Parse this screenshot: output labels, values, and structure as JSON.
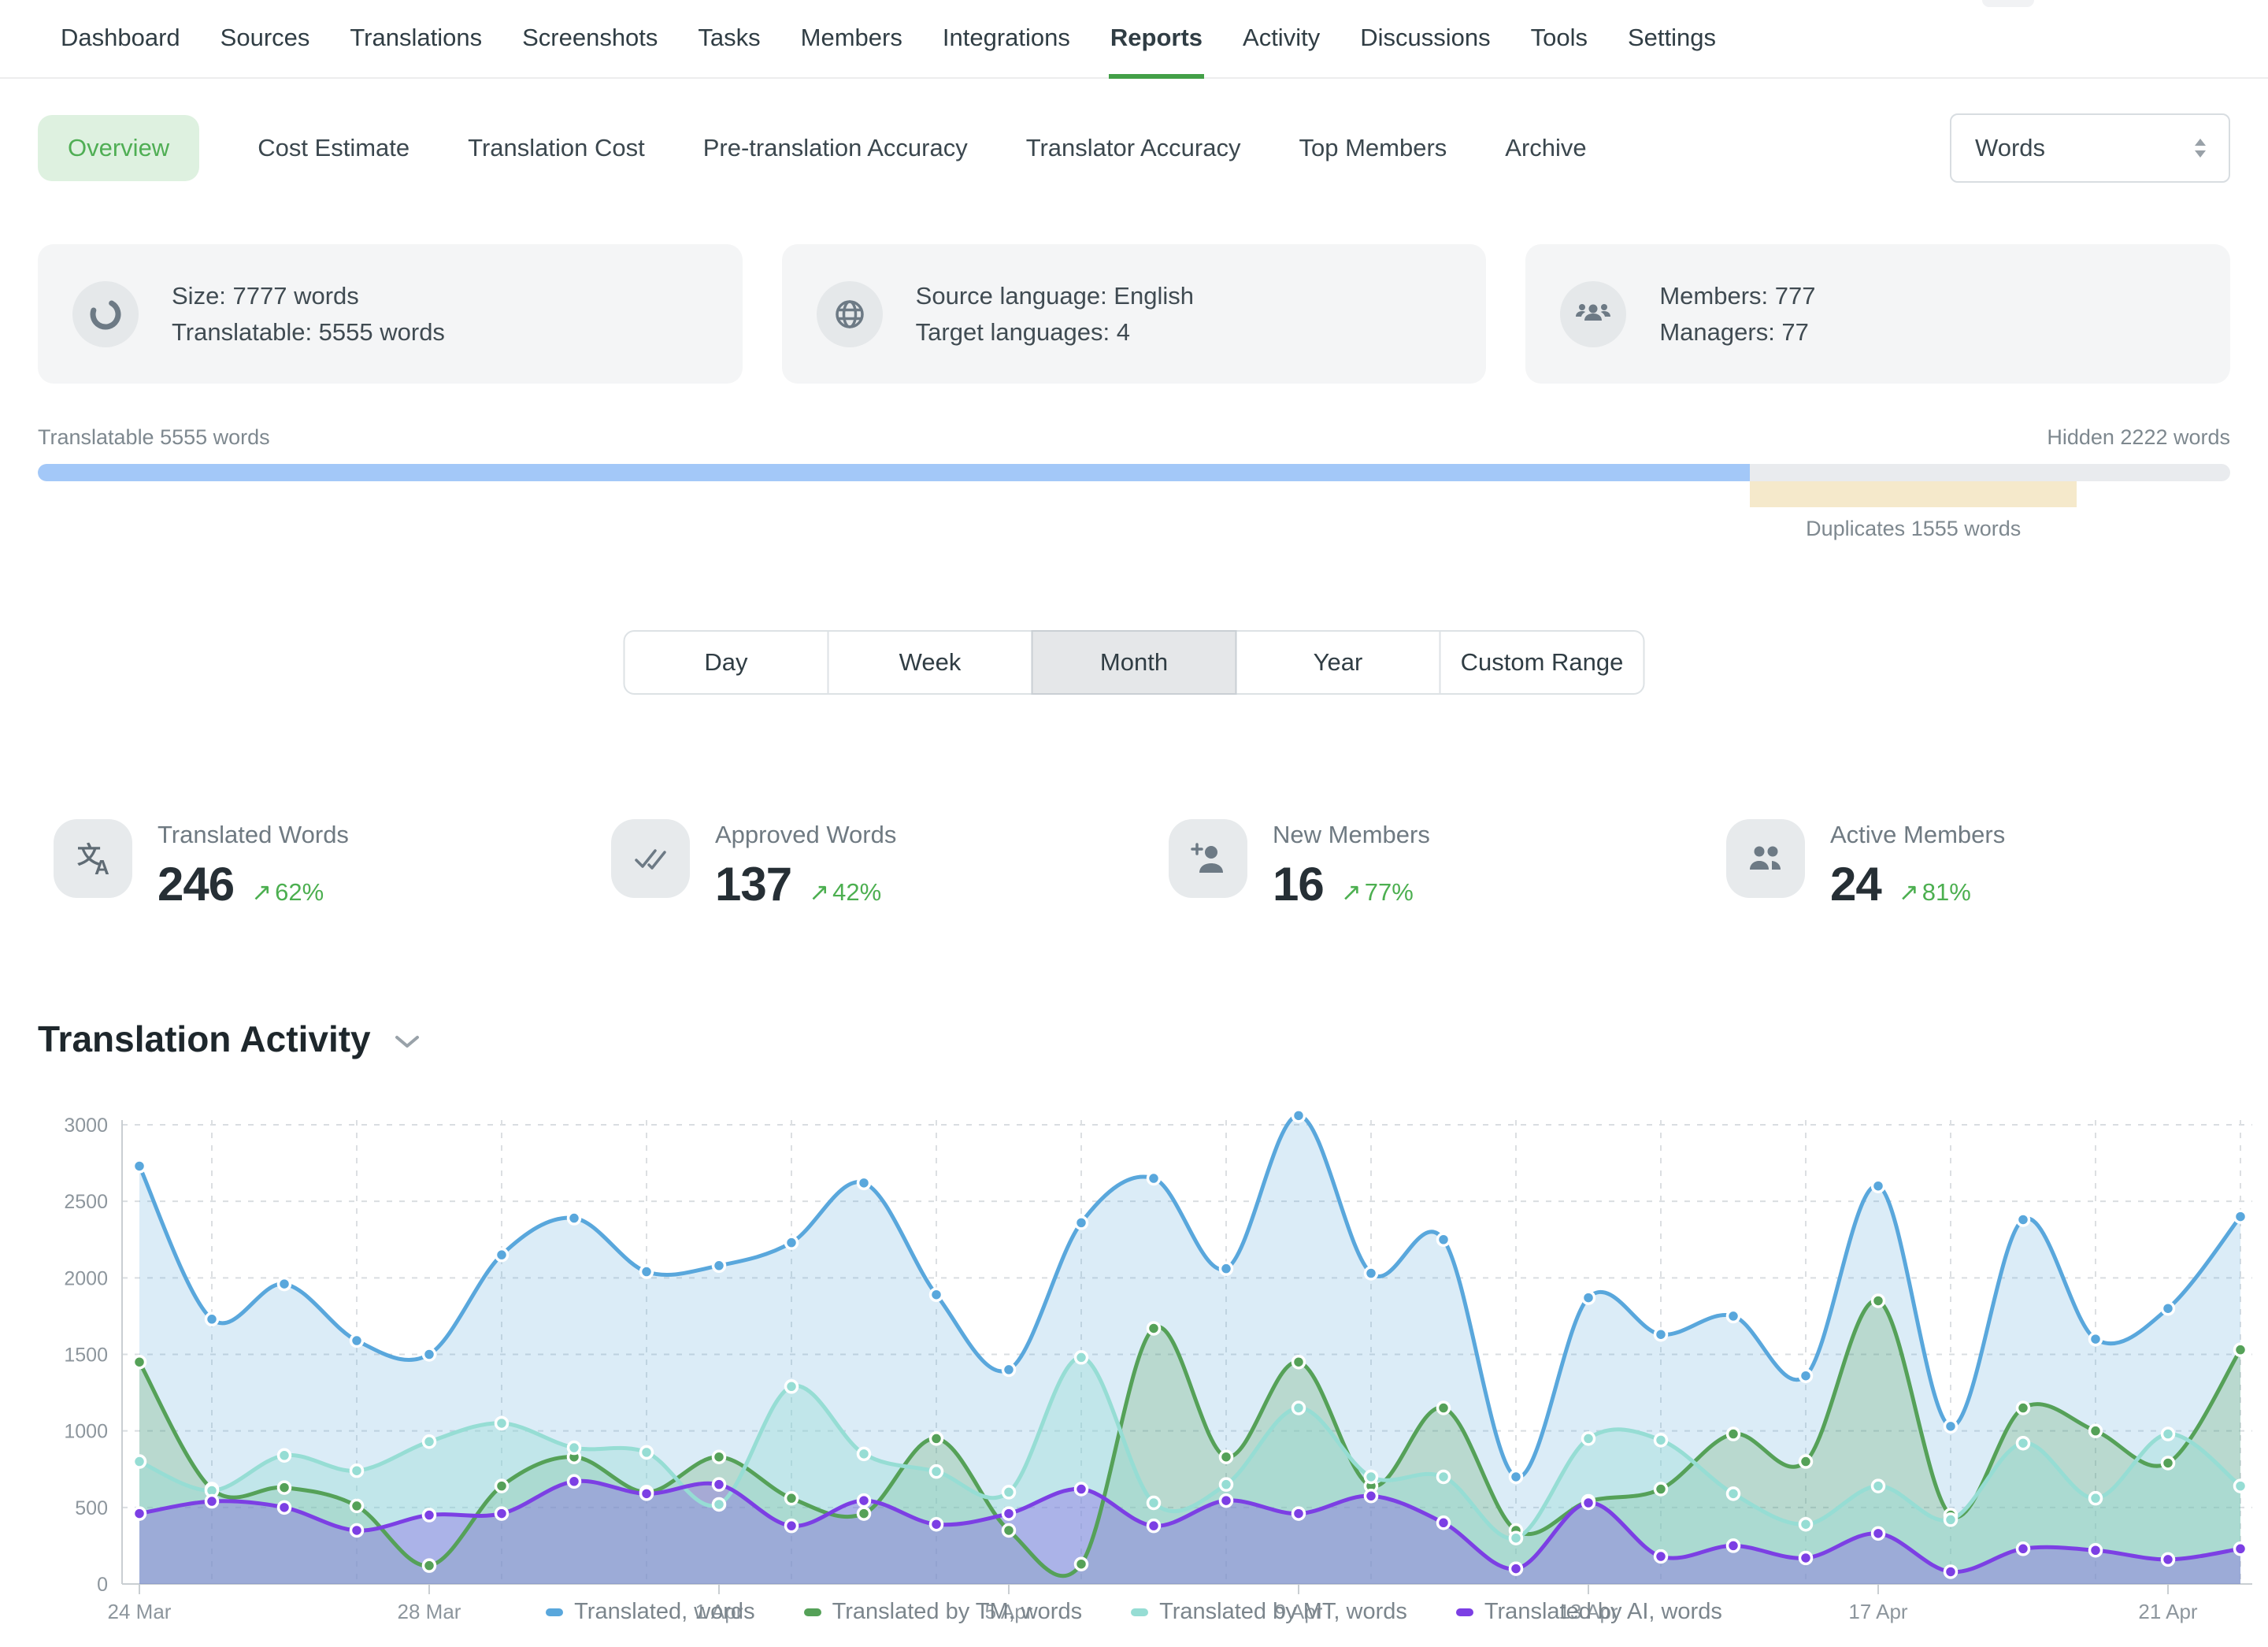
{
  "nav": {
    "items": [
      "Dashboard",
      "Sources",
      "Translations",
      "Screenshots",
      "Tasks",
      "Members",
      "Integrations",
      "Reports",
      "Activity",
      "Discussions",
      "Tools",
      "Settings"
    ],
    "active": "Reports"
  },
  "report_tabs": {
    "items": [
      "Overview",
      "Cost Estimate",
      "Translation Cost",
      "Pre-translation Accuracy",
      "Translator Accuracy",
      "Top Members",
      "Archive"
    ],
    "active": "Overview",
    "unit_select": {
      "value": "Words"
    }
  },
  "summary_cards": [
    {
      "icon": "donut-icon",
      "lines": [
        "Size: 7777 words",
        "Translatable: 5555 words"
      ]
    },
    {
      "icon": "globe-icon",
      "lines": [
        "Source language: English",
        "Target languages: 4"
      ]
    },
    {
      "icon": "members-icon",
      "lines": [
        "Members: 777",
        "Managers: 77"
      ]
    }
  ],
  "words_breakdown": {
    "translatable_label": "Translatable 5555 words",
    "hidden_label": "Hidden 2222 words",
    "duplicates_label": "Duplicates 1555 words",
    "translatable_pct": 78.1,
    "duplicates_pct": 14.9,
    "bar_color": "#a3c8f8",
    "track_color": "#e9ebee",
    "duplicates_color": "#f5e9cb"
  },
  "range_buttons": {
    "options": [
      "Day",
      "Week",
      "Month",
      "Year",
      "Custom Range"
    ],
    "active": "Month"
  },
  "stats": [
    {
      "icon": "translate-icon",
      "label": "Translated Words",
      "value": "246",
      "change": "62%"
    },
    {
      "icon": "double-check-icon",
      "label": "Approved Words",
      "value": "137",
      "change": "42%"
    },
    {
      "icon": "person-add-icon",
      "label": "New Members",
      "value": "16",
      "change": "77%"
    },
    {
      "icon": "people-icon",
      "label": "Active Members",
      "value": "24",
      "change": "81%"
    }
  ],
  "section": {
    "title": "Translation Activity"
  },
  "chart_data": {
    "type": "area",
    "x": [
      "24 Mar",
      "25 Mar",
      "26 Mar",
      "27 Mar",
      "28 Mar",
      "29 Mar",
      "30 Mar",
      "31 Mar",
      "1 Apr",
      "2 Apr",
      "3 Apr",
      "4 Apr",
      "5 Apr",
      "6 Apr",
      "7 Apr",
      "8 Apr",
      "9 Apr",
      "10 Apr",
      "11 Apr",
      "12 Apr",
      "13 Apr",
      "14 Apr",
      "15 Apr",
      "16 Apr",
      "17 Apr",
      "18 Apr",
      "19 Apr",
      "20 Apr",
      "21 Apr",
      "22 Apr"
    ],
    "x_tick_labels": [
      "24 Mar",
      "28 Mar",
      "1 Apr",
      "5 Apr",
      "9 Apr",
      "13 Apr",
      "17 Apr",
      "21 Apr"
    ],
    "ylim": [
      0,
      3000
    ],
    "ytick_step": 500,
    "grid": true,
    "legend_position": "bottom",
    "series": [
      {
        "name": "Translated, words",
        "color": "#59a7dc",
        "fill": "rgba(89,167,220,0.22)",
        "values": [
          2730,
          1730,
          1960,
          1590,
          1500,
          2150,
          2390,
          2040,
          2080,
          2230,
          2620,
          1890,
          1400,
          2360,
          2650,
          2060,
          3060,
          2030,
          2250,
          700,
          1870,
          1630,
          1750,
          1360,
          2600,
          1030,
          2380,
          1600,
          1800,
          2400
        ]
      },
      {
        "name": "Translated by TM, words",
        "color": "#55a158",
        "fill": "rgba(85,161,88,0.25)",
        "values": [
          1450,
          620,
          630,
          510,
          120,
          640,
          830,
          600,
          830,
          560,
          460,
          950,
          350,
          130,
          1670,
          830,
          1450,
          640,
          1150,
          350,
          540,
          620,
          980,
          800,
          1850,
          450,
          1150,
          1000,
          790,
          1530
        ]
      },
      {
        "name": "Translated by MT, words",
        "color": "#96ddd4",
        "fill": "rgba(150,221,212,0.38)",
        "values": [
          800,
          610,
          840,
          740,
          930,
          1050,
          890,
          860,
          520,
          1290,
          850,
          735,
          600,
          1480,
          530,
          650,
          1150,
          700,
          700,
          300,
          950,
          940,
          590,
          390,
          640,
          420,
          920,
          560,
          980,
          640
        ]
      },
      {
        "name": "Translated by AI, words",
        "color": "#7c3fe4",
        "fill": "rgba(124,63,228,0.30)",
        "values": [
          460,
          540,
          500,
          350,
          450,
          460,
          670,
          590,
          650,
          380,
          545,
          390,
          460,
          620,
          380,
          545,
          460,
          575,
          400,
          100,
          530,
          180,
          250,
          170,
          330,
          80,
          230,
          220,
          160,
          230
        ]
      }
    ]
  }
}
